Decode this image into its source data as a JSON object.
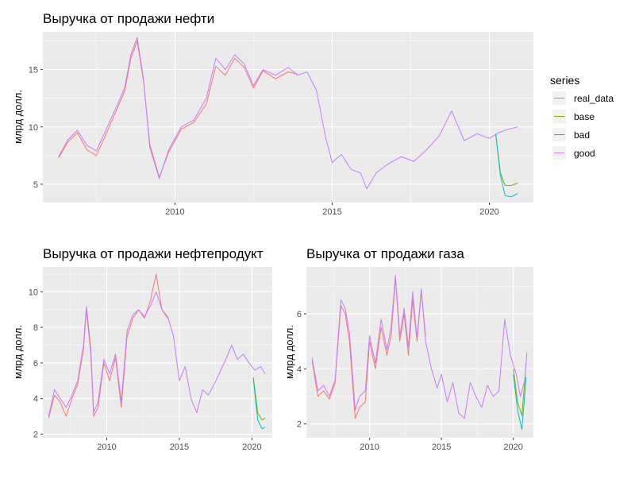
{
  "chart_data": [
    {
      "type": "line",
      "title": "Выручка от продажи нефти",
      "xlabel": "",
      "ylabel": "млрд долл.",
      "xlim": [
        2005.8,
        2021.4
      ],
      "ylim": [
        3.4,
        18.3
      ],
      "xticks": [
        "2010",
        "2015",
        "2020"
      ],
      "yticks": [
        "5",
        "10",
        "15"
      ],
      "series": [
        {
          "name": "real_data",
          "color": "#F8766D",
          "x": [
            2006.3,
            2006.6,
            2006.9,
            2007.2,
            2007.5,
            2007.8,
            2008.1,
            2008.4,
            2008.6,
            2008.8,
            2009.0,
            2009.2,
            2009.5,
            2009.8,
            2010.2,
            2010.6,
            2011.0,
            2011.3,
            2011.6,
            2011.9,
            2012.2,
            2012.5,
            2012.8,
            2013.2,
            2013.6,
            2013.9
          ],
          "y": [
            7.3,
            8.7,
            9.5,
            8.0,
            7.5,
            9.3,
            11.2,
            13.1,
            16.0,
            17.5,
            14.0,
            8.5,
            5.6,
            7.8,
            9.8,
            10.4,
            12.0,
            15.3,
            14.5,
            16.0,
            15.2,
            13.4,
            14.9,
            14.2,
            14.8,
            14.6
          ]
        },
        {
          "name": "base",
          "color": "#7CAE00",
          "x": [
            2020.2,
            2020.35,
            2020.5,
            2020.7,
            2020.9
          ],
          "y": [
            9.4,
            6.0,
            4.9,
            4.9,
            5.1
          ]
        },
        {
          "name": "bad",
          "color": "#00BFC4",
          "x": [
            2020.2,
            2020.35,
            2020.5,
            2020.7,
            2020.9
          ],
          "y": [
            9.4,
            5.8,
            4.0,
            3.9,
            4.2
          ]
        },
        {
          "name": "good",
          "color": "#C77CFF",
          "x": [
            2006.3,
            2006.6,
            2006.9,
            2007.2,
            2007.5,
            2007.8,
            2008.1,
            2008.4,
            2008.6,
            2008.8,
            2009.0,
            2009.2,
            2009.5,
            2009.8,
            2010.2,
            2010.6,
            2011.0,
            2011.3,
            2011.6,
            2011.9,
            2012.2,
            2012.5,
            2012.8,
            2013.2,
            2013.6,
            2013.9,
            2014.2,
            2014.5,
            2014.8,
            2015.0,
            2015.3,
            2015.6,
            2015.9,
            2016.1,
            2016.4,
            2016.8,
            2017.2,
            2017.6,
            2018.0,
            2018.4,
            2018.8,
            2019.2,
            2019.6,
            2020.0,
            2020.3,
            2020.6,
            2020.9
          ],
          "y": [
            7.4,
            8.9,
            9.7,
            8.4,
            7.9,
            9.7,
            11.5,
            13.4,
            16.3,
            17.8,
            14.2,
            8.2,
            5.5,
            8.0,
            10.0,
            10.6,
            12.5,
            16.0,
            15.0,
            16.3,
            15.5,
            13.6,
            15.0,
            14.5,
            15.2,
            14.5,
            14.8,
            13.2,
            9.0,
            6.9,
            7.6,
            6.3,
            6.0,
            4.6,
            6.0,
            6.8,
            7.4,
            7.0,
            8.0,
            9.2,
            11.4,
            8.8,
            9.4,
            9.0,
            9.5,
            9.8,
            10.0
          ]
        }
      ],
      "legend": {
        "title": "series",
        "position": "right",
        "entries": [
          "real_data",
          "base",
          "bad",
          "good"
        ]
      }
    },
    {
      "type": "line",
      "title": "Выручка от продажи нефтепродукт",
      "xlabel": "",
      "ylabel": "млрд долл.",
      "xlim": [
        2005.6,
        2021.4
      ],
      "ylim": [
        1.8,
        11.4
      ],
      "xticks": [
        "2010",
        "2015",
        "2020"
      ],
      "yticks": [
        "2",
        "4",
        "6",
        "8",
        "10"
      ],
      "series": [
        {
          "name": "real_data",
          "color": "#F8766D",
          "x": [
            2006.0,
            2006.4,
            2006.8,
            2007.2,
            2007.6,
            2008.0,
            2008.4,
            2008.6,
            2008.9,
            2009.1,
            2009.4,
            2009.8,
            2010.2,
            2010.6,
            2011.0,
            2011.4,
            2011.8,
            2012.2,
            2012.6,
            2013.0,
            2013.4,
            2013.8,
            2014.2
          ],
          "y": [
            2.9,
            4.2,
            3.8,
            3.0,
            4.0,
            4.8,
            6.8,
            9.0,
            6.5,
            3.0,
            3.5,
            6.0,
            5.0,
            6.3,
            3.5,
            7.5,
            8.5,
            9.0,
            8.5,
            9.5,
            11.0,
            9.0,
            8.5
          ]
        },
        {
          "name": "base",
          "color": "#7CAE00",
          "x": [
            2020.1,
            2020.4,
            2020.7,
            2020.9
          ],
          "y": [
            5.2,
            3.2,
            2.8,
            2.9
          ]
        },
        {
          "name": "bad",
          "color": "#00BFC4",
          "x": [
            2020.1,
            2020.4,
            2020.7,
            2020.9
          ],
          "y": [
            5.1,
            2.8,
            2.3,
            2.4
          ]
        },
        {
          "name": "good",
          "color": "#C77CFF",
          "x": [
            2006.0,
            2006.4,
            2006.8,
            2007.2,
            2007.6,
            2008.0,
            2008.4,
            2008.6,
            2008.9,
            2009.1,
            2009.4,
            2009.8,
            2010.2,
            2010.6,
            2011.0,
            2011.4,
            2011.8,
            2012.2,
            2012.6,
            2013.0,
            2013.4,
            2013.8,
            2014.2,
            2014.6,
            2015.0,
            2015.4,
            2015.8,
            2016.2,
            2016.6,
            2017.0,
            2017.4,
            2017.8,
            2018.2,
            2018.6,
            2019.0,
            2019.4,
            2019.8,
            2020.2,
            2020.6,
            2020.9
          ],
          "y": [
            3.0,
            4.5,
            4.0,
            3.5,
            4.2,
            5.0,
            7.0,
            9.2,
            6.8,
            3.2,
            3.8,
            6.2,
            5.4,
            6.5,
            3.8,
            7.8,
            8.7,
            9.0,
            8.6,
            9.2,
            10.0,
            9.0,
            8.6,
            7.5,
            5.0,
            5.8,
            4.0,
            3.2,
            4.5,
            4.2,
            4.8,
            5.5,
            6.2,
            7.0,
            6.2,
            6.5,
            6.0,
            5.6,
            5.8,
            5.4
          ]
        }
      ]
    },
    {
      "type": "line",
      "title": "Выручка от продажи газа",
      "xlabel": "",
      "ylabel": "млрд долл.",
      "xlim": [
        2005.6,
        2021.4
      ],
      "ylim": [
        1.5,
        7.7
      ],
      "xticks": [
        "2010",
        "2015",
        "2020"
      ],
      "yticks": [
        "2",
        "4",
        "6"
      ],
      "series": [
        {
          "name": "real_data",
          "color": "#F8766D",
          "x": [
            2006.0,
            2006.4,
            2006.8,
            2007.2,
            2007.6,
            2008.0,
            2008.3,
            2008.6,
            2009.0,
            2009.3,
            2009.7,
            2010.0,
            2010.4,
            2010.8,
            2011.2,
            2011.5,
            2011.8,
            2012.1,
            2012.4,
            2012.7,
            2013.0,
            2013.3,
            2013.6,
            2013.9
          ],
          "y": [
            4.3,
            3.0,
            3.2,
            2.9,
            3.5,
            6.3,
            6.0,
            5.0,
            2.2,
            2.6,
            2.8,
            5.0,
            4.0,
            5.5,
            4.5,
            5.2,
            7.3,
            5.0,
            6.0,
            4.5,
            6.5,
            5.0,
            6.8,
            5.2
          ]
        },
        {
          "name": "base",
          "color": "#7CAE00",
          "x": [
            2020.0,
            2020.3,
            2020.6,
            2020.9
          ],
          "y": [
            4.0,
            2.8,
            2.3,
            4.2
          ]
        },
        {
          "name": "bad",
          "color": "#00BFC4",
          "x": [
            2020.0,
            2020.3,
            2020.6,
            2020.9
          ],
          "y": [
            3.8,
            2.5,
            1.8,
            3.7
          ]
        },
        {
          "name": "good",
          "color": "#C77CFF",
          "x": [
            2006.0,
            2006.4,
            2006.8,
            2007.2,
            2007.6,
            2008.0,
            2008.3,
            2008.6,
            2009.0,
            2009.3,
            2009.7,
            2010.0,
            2010.4,
            2010.8,
            2011.2,
            2011.5,
            2011.8,
            2012.1,
            2012.4,
            2012.7,
            2013.0,
            2013.3,
            2013.6,
            2013.9,
            2014.3,
            2014.7,
            2015.0,
            2015.4,
            2015.8,
            2016.2,
            2016.6,
            2017.0,
            2017.4,
            2017.8,
            2018.2,
            2018.6,
            2019.0,
            2019.4,
            2019.8,
            2020.2,
            2020.5,
            2020.8,
            2020.95
          ],
          "y": [
            4.4,
            3.2,
            3.4,
            3.0,
            3.6,
            6.5,
            6.2,
            5.3,
            2.5,
            3.0,
            3.2,
            5.2,
            4.2,
            5.8,
            4.7,
            5.5,
            7.4,
            5.2,
            6.2,
            4.8,
            6.8,
            5.1,
            6.9,
            5.0,
            4.0,
            3.3,
            3.8,
            2.8,
            3.5,
            2.4,
            2.2,
            3.5,
            3.0,
            2.6,
            3.4,
            3.0,
            3.2,
            5.8,
            4.5,
            3.8,
            3.0,
            3.6,
            4.6
          ]
        }
      ]
    }
  ]
}
